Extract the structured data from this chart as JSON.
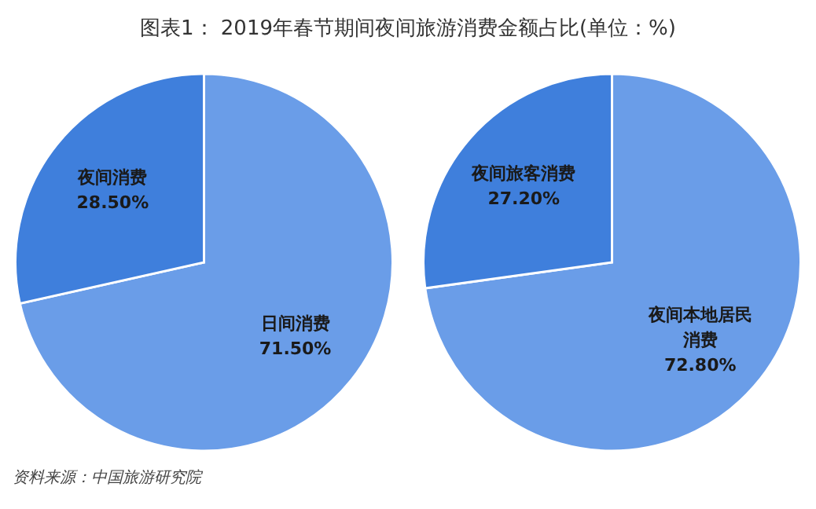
{
  "chart_data": [
    {
      "type": "pie",
      "title": "图表1： 2019年春节期间夜间旅游消费金额占比(单位：%)",
      "categories": [
        "日间消费",
        "夜间消费"
      ],
      "values": [
        71.5,
        28.5
      ],
      "colors": [
        "#6a9de8",
        "#3f7fdc"
      ],
      "value_labels": [
        "71.50%",
        "28.50%"
      ],
      "annotations": [
        "资料来源：中国旅游研究院"
      ]
    },
    {
      "type": "pie",
      "categories": [
        "夜间本地居民消费",
        "夜间旅客消费"
      ],
      "values": [
        72.8,
        27.2
      ],
      "colors": [
        "#6a9de8",
        "#3f7fdc"
      ],
      "value_labels": [
        "72.80%",
        "27.20%"
      ]
    }
  ]
}
